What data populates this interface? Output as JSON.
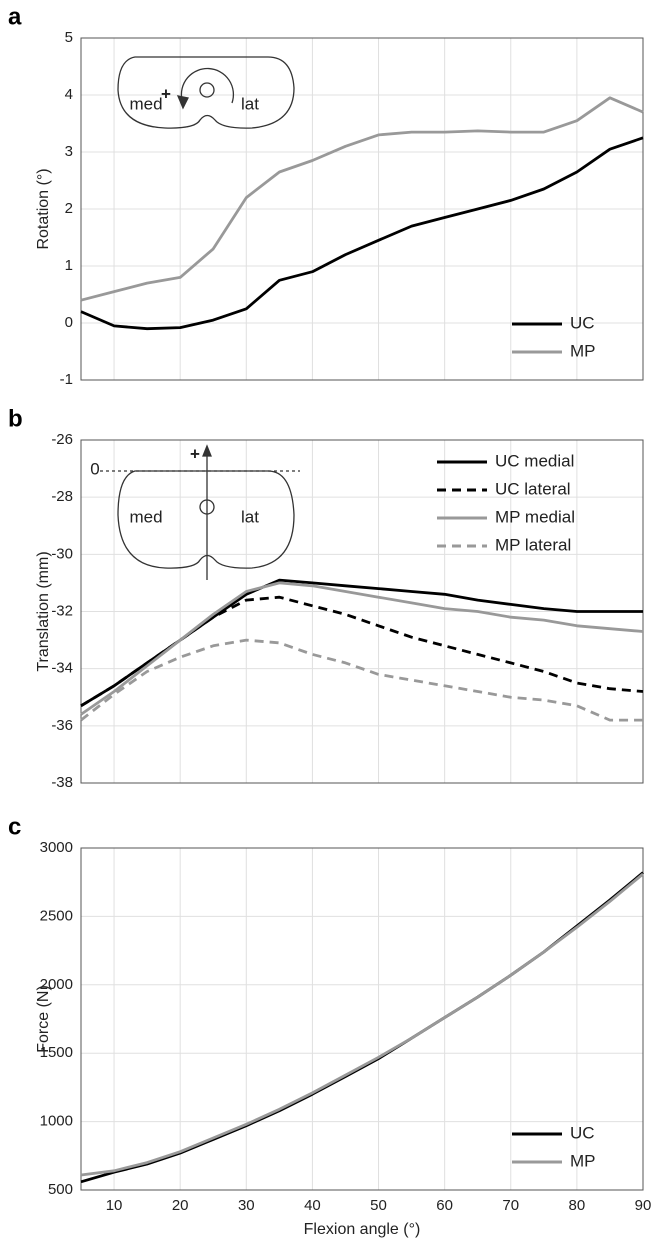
{
  "chart_data": [
    {
      "type": "line",
      "panel": "a",
      "y_label": "Rotation (°)",
      "x": [
        5,
        10,
        15,
        20,
        25,
        30,
        35,
        40,
        45,
        50,
        55,
        60,
        65,
        70,
        75,
        80,
        85,
        90
      ],
      "xlim": [
        5,
        90
      ],
      "xticks": [
        10,
        20,
        30,
        40,
        50,
        60,
        70,
        80,
        90
      ],
      "ylim": [
        -1,
        5
      ],
      "yticks": [
        -1,
        0,
        1,
        2,
        3,
        4,
        5
      ],
      "grid": true,
      "legend": "lower right",
      "inset_labels": [
        "+",
        "med",
        "lat"
      ],
      "series": [
        {
          "name": "UC",
          "color": "#000000",
          "dashed": false,
          "values": [
            0.2,
            -0.05,
            -0.1,
            -0.08,
            0.05,
            0.25,
            0.75,
            0.9,
            1.2,
            1.45,
            1.7,
            1.85,
            2.0,
            2.15,
            2.35,
            2.65,
            3.05,
            3.25
          ]
        },
        {
          "name": "MP",
          "color": "#999999",
          "dashed": false,
          "values": [
            0.4,
            0.55,
            0.7,
            0.8,
            1.3,
            2.2,
            2.65,
            2.85,
            3.1,
            3.3,
            3.35,
            3.35,
            3.37,
            3.35,
            3.35,
            3.55,
            3.95,
            3.7
          ]
        }
      ]
    },
    {
      "type": "line",
      "panel": "b",
      "y_label": "Translation (mm)",
      "x": [
        5,
        10,
        15,
        20,
        25,
        30,
        35,
        40,
        45,
        50,
        55,
        60,
        65,
        70,
        75,
        80,
        85,
        90
      ],
      "xlim": [
        5,
        90
      ],
      "xticks": [
        10,
        20,
        30,
        40,
        50,
        60,
        70,
        80,
        90
      ],
      "ylim": [
        -38,
        -26
      ],
      "yticks": [
        -38,
        -36,
        -34,
        -32,
        -30,
        -28,
        -26
      ],
      "grid": true,
      "legend": "upper right",
      "inset_labels": [
        "+",
        "0",
        "med",
        "lat"
      ],
      "series": [
        {
          "name": "UC medial",
          "color": "#000000",
          "dashed": false,
          "values": [
            -35.3,
            -34.6,
            -33.8,
            -33.0,
            -32.2,
            -31.4,
            -30.9,
            -31.0,
            -31.1,
            -31.2,
            -31.3,
            -31.4,
            -31.6,
            -31.75,
            -31.9,
            -32.0,
            -32.0,
            -32.0
          ]
        },
        {
          "name": "UC lateral",
          "color": "#000000",
          "dashed": true,
          "values": [
            -35.3,
            -34.6,
            -33.8,
            -33.0,
            -32.2,
            -31.6,
            -31.5,
            -31.8,
            -32.1,
            -32.5,
            -32.9,
            -33.2,
            -33.5,
            -33.8,
            -34.1,
            -34.5,
            -34.7,
            -34.8
          ]
        },
        {
          "name": "MP medial",
          "color": "#999999",
          "dashed": false,
          "values": [
            -35.6,
            -34.8,
            -33.9,
            -33.0,
            -32.1,
            -31.3,
            -31.0,
            -31.1,
            -31.3,
            -31.5,
            -31.7,
            -31.9,
            -32.0,
            -32.2,
            -32.3,
            -32.5,
            -32.6,
            -32.7
          ]
        },
        {
          "name": "MP lateral",
          "color": "#999999",
          "dashed": true,
          "values": [
            -35.8,
            -34.9,
            -34.1,
            -33.6,
            -33.2,
            -33.0,
            -33.1,
            -33.5,
            -33.8,
            -34.2,
            -34.4,
            -34.6,
            -34.8,
            -35.0,
            -35.1,
            -35.3,
            -35.8,
            -35.8
          ]
        }
      ]
    },
    {
      "type": "line",
      "panel": "c",
      "y_label": "Force (N)",
      "x_label": "Flexion angle (°)",
      "x": [
        5,
        10,
        15,
        20,
        25,
        30,
        35,
        40,
        45,
        50,
        55,
        60,
        65,
        70,
        75,
        80,
        85,
        90
      ],
      "xlim": [
        5,
        90
      ],
      "xticks": [
        10,
        20,
        30,
        40,
        50,
        60,
        70,
        80,
        90
      ],
      "ylim": [
        500,
        3000
      ],
      "yticks": [
        500,
        1000,
        1500,
        2000,
        2500,
        3000
      ],
      "grid": true,
      "legend": "lower right",
      "series": [
        {
          "name": "UC",
          "color": "#000000",
          "dashed": false,
          "values": [
            560,
            630,
            690,
            770,
            870,
            970,
            1080,
            1200,
            1330,
            1460,
            1610,
            1760,
            1910,
            2070,
            2240,
            2430,
            2620,
            2820
          ]
        },
        {
          "name": "MP",
          "color": "#999999",
          "dashed": false,
          "values": [
            610,
            640,
            700,
            780,
            880,
            980,
            1090,
            1210,
            1340,
            1470,
            1610,
            1760,
            1910,
            2070,
            2240,
            2420,
            2610,
            2810
          ]
        }
      ]
    }
  ]
}
